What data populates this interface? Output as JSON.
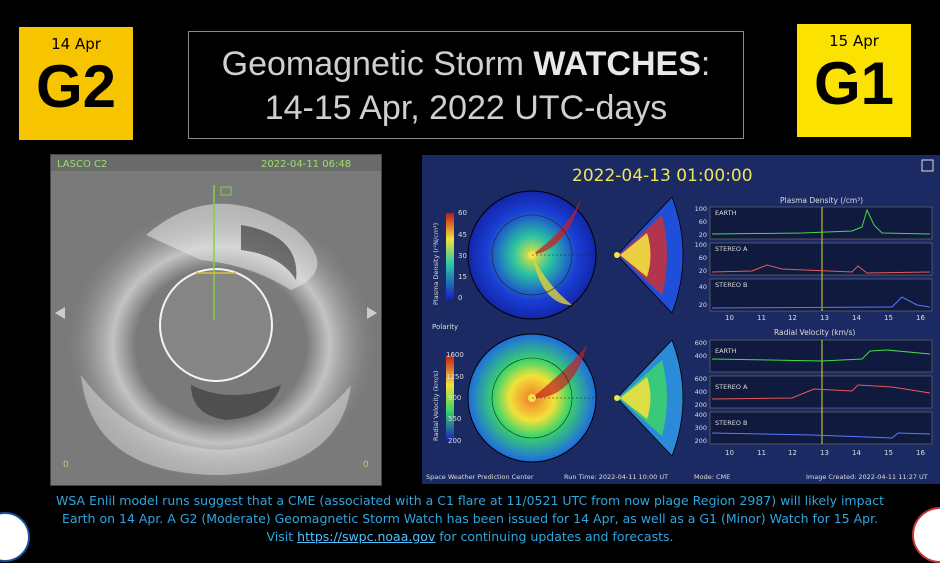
{
  "badge_left": {
    "date": "14 Apr",
    "level": "G2"
  },
  "badge_right": {
    "date": "15 Apr",
    "level": "G1"
  },
  "title": {
    "line1_prefix": "Geomagnetic Storm ",
    "line1_bold": "WATCHES",
    "line1_suffix": ":",
    "line2": "14-15 Apr, 2022 UTC-days"
  },
  "lasco": {
    "label": "LASCO C2",
    "timestamp": "2022-04-11 06:48",
    "corner_left": "0",
    "corner_right": "0"
  },
  "enlil": {
    "timestamp": "2022-04-13  01:00:00",
    "density_axis_label": "Plasma Density (r²N/cm³)",
    "density_ticks": [
      "60",
      "45",
      "30",
      "15",
      "0"
    ],
    "velocity_axis_label": "Radial Velocity (km/s)",
    "velocity_ticks": [
      "1600",
      "1250",
      "900",
      "550",
      "200"
    ],
    "polarity_label": "Polarity",
    "panel_density_title": "Plasma Density (/cm³)",
    "panel_velocity_title": "Radial Velocity (km/s)",
    "density_yticks": {
      "earth": [
        "100",
        "60",
        "20"
      ],
      "stereo_a": [
        "100",
        "60",
        "20"
      ],
      "stereo_b": [
        "40",
        "20"
      ]
    },
    "velocity_yticks": {
      "earth": [
        "600",
        "400"
      ],
      "stereo_a": [
        "600",
        "400",
        "200"
      ],
      "stereo_b": [
        "400",
        "300",
        "200"
      ]
    },
    "panel_labels": [
      "EARTH",
      "STEREO A",
      "STEREO B"
    ],
    "x_ticks": [
      "10",
      "11",
      "12",
      "13",
      "14",
      "15",
      "16"
    ],
    "footer_center": "Space Weather Prediction Center",
    "footer_run": "Run Time: 2022-04-11 10:00 UT",
    "footer_mode": "Mode: CME",
    "footer_created": "Image Created: 2022-04-11 11:27 UT",
    "series_colors": {
      "earth": "#48d848",
      "stereo_a": "#e85a5a",
      "stereo_b": "#5a78ff"
    }
  },
  "caption": {
    "line1": "WSA Enlil model runs suggest that a CME (associated with a C1 flare at 11/0521 UTC from now plage Region 2987) will likely impact",
    "line2": "Earth on 14 Apr. A G2 (Moderate)  Geomagnetic Storm Watch has been issued for 14 Apr, as well as a G1 (Minor) Watch for 15 Apr.",
    "line3_prefix": "Visit ",
    "link": "https://swpc.noaa.gov",
    "line3_suffix": " for continuing updates and forecasts."
  }
}
